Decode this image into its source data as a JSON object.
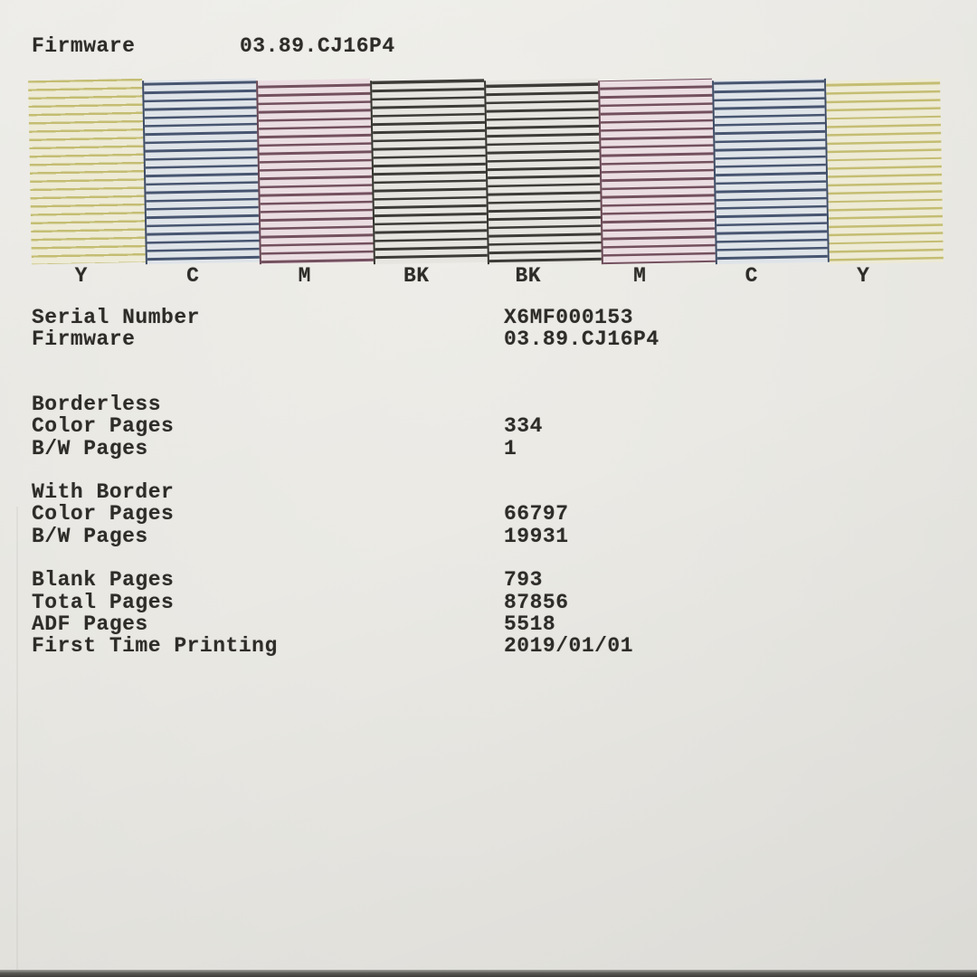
{
  "header": {
    "label": "Firmware",
    "value": "03.89.CJ16P4"
  },
  "nozzle_check": {
    "blocks": [
      {
        "channel": "Y",
        "line_color": "#c4bd72",
        "fill_color": "#edead6"
      },
      {
        "channel": "C",
        "line_color": "#475570",
        "fill_color": "#dfe4e9"
      },
      {
        "channel": "M",
        "line_color": "#73505e",
        "fill_color": "#ebdee2"
      },
      {
        "channel": "BK",
        "line_color": "#3c3b37",
        "fill_color": "#e7e5df"
      },
      {
        "channel": "BK",
        "line_color": "#3c3b37",
        "fill_color": "#e7e5df"
      },
      {
        "channel": "M",
        "line_color": "#73505e",
        "fill_color": "#ebdee2"
      },
      {
        "channel": "C",
        "line_color": "#475570",
        "fill_color": "#dfe4e9"
      },
      {
        "channel": "Y",
        "line_color": "#c4bd72",
        "fill_color": "#edead6"
      }
    ]
  },
  "info": {
    "rows": [
      {
        "label": "Serial Number",
        "value": "X6MF000153"
      },
      {
        "label": "Firmware",
        "value": "03.89.CJ16P4"
      }
    ]
  },
  "counters": {
    "sections": [
      {
        "heading": "Borderless",
        "rows": [
          {
            "label": "Color Pages",
            "value": "334"
          },
          {
            "label": "B/W Pages",
            "value": "1"
          }
        ]
      },
      {
        "heading": "With Border",
        "rows": [
          {
            "label": "Color Pages",
            "value": "66797"
          },
          {
            "label": "B/W Pages",
            "value": "19931"
          }
        ]
      },
      {
        "heading": "",
        "rows": [
          {
            "label": "Blank Pages",
            "value": "793"
          },
          {
            "label": "Total Pages",
            "value": "87856"
          },
          {
            "label": "ADF Pages",
            "value": "5518"
          },
          {
            "label": "First Time Printing",
            "value": "2019/01/01"
          }
        ]
      }
    ]
  },
  "colors": {
    "paper": "#e9e8e3",
    "ink_text": "#2e2c28",
    "yellow_line": "#c4bd72",
    "yellow_fill": "#edead6",
    "cyan_line": "#475570",
    "cyan_fill": "#dfe4e9",
    "magenta_line": "#73505e",
    "magenta_fill": "#ebdee2",
    "black_line": "#3c3b37",
    "black_fill": "#e7e5df"
  }
}
